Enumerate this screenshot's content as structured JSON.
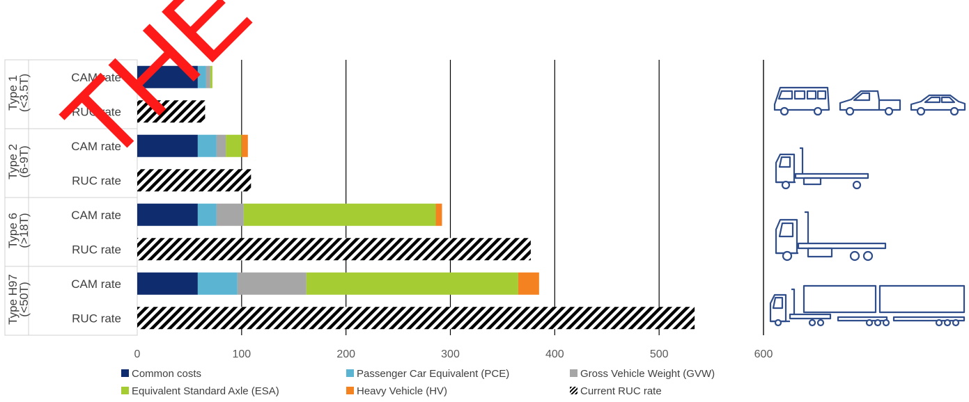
{
  "watermark": "THE OFFICIAL",
  "colors": {
    "common": "#0f2d6e",
    "pce": "#5ab4d2",
    "gvw": "#a6a6a6",
    "esa": "#a6cc33",
    "hv": "#f58220",
    "ruc": "#000000",
    "icon": "#2e4d8a"
  },
  "icons": [
    "van-icon",
    "ute-icon",
    "car-icon",
    "rigid-truck-icon",
    "heavy-rigid-truck-icon",
    "b-double-truck-icon"
  ],
  "chart_data": {
    "type": "bar",
    "orientation": "horizontal",
    "stacked": true,
    "xlim": [
      0,
      600
    ],
    "xticks": [
      "0",
      "100",
      "200",
      "300",
      "400",
      "500",
      "600"
    ],
    "grid": true,
    "legend_position": "bottom",
    "groups": [
      {
        "name": "Type 1",
        "sub": "(<3.5T)"
      },
      {
        "name": "Type 2",
        "sub": "(6-9T)"
      },
      {
        "name": "Type 6",
        "sub": "(>18T)"
      },
      {
        "name": "Type H97",
        "sub": "(<50T)"
      }
    ],
    "row_labels": {
      "cam": "CAM rate",
      "ruc": "RUC rate"
    },
    "series": [
      {
        "key": "common",
        "name": "Common costs",
        "values": [
          58,
          58,
          58,
          58
        ]
      },
      {
        "key": "pce",
        "name": "Passenger Car Equivalent (PCE)",
        "values": [
          8,
          18,
          18,
          38
        ]
      },
      {
        "key": "gvw",
        "name": "Gross Vehicle Weight (GVW)",
        "values": [
          4,
          9,
          26,
          66
        ]
      },
      {
        "key": "esa",
        "name": "Equivalent Standard Axle (ESA)",
        "values": [
          2,
          15,
          184,
          203
        ]
      },
      {
        "key": "hv",
        "name": "Heavy Vehicle (HV)",
        "values": [
          0,
          6,
          6,
          20
        ]
      }
    ],
    "ruc_series": {
      "key": "ruc",
      "name": "Current RUC rate",
      "values": [
        65,
        109,
        377,
        534
      ]
    }
  }
}
